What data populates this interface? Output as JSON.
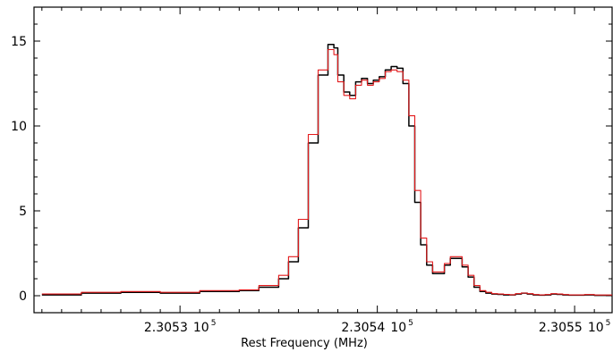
{
  "chart_data": {
    "type": "line",
    "title": "",
    "xlabel": "Rest Frequency (MHz)",
    "ylabel": "",
    "x_unit": "MHz",
    "xlim": [
      230522.6,
      230551.9
    ],
    "ylim": [
      -1.0,
      17.0
    ],
    "grid": false,
    "legend": "none",
    "x_ticks": [
      {
        "value": 230530,
        "mantissa": "2.3053",
        "base": "10",
        "exponent": "5"
      },
      {
        "value": 230540,
        "mantissa": "2.3054",
        "base": "10",
        "exponent": "5"
      },
      {
        "value": 230550,
        "mantissa": "2.3055",
        "base": "10",
        "exponent": "5"
      }
    ],
    "y_ticks": [
      0,
      5,
      10,
      15
    ],
    "series": [
      {
        "color": "#000000",
        "style": "step",
        "x": [
          230523.0,
          230525.0,
          230527.0,
          230529.0,
          230531.0,
          230533.0,
          230534.0,
          230535.0,
          230535.5,
          230536.0,
          230536.5,
          230537.0,
          230537.5,
          230537.8,
          230538.0,
          230538.3,
          230538.6,
          230538.9,
          230539.2,
          230539.5,
          230539.8,
          230540.1,
          230540.4,
          230540.7,
          230541.0,
          230541.3,
          230541.6,
          230541.9,
          230542.2,
          230542.5,
          230542.8,
          230543.1,
          230543.4,
          230543.7,
          230544.0,
          230544.3,
          230544.6,
          230544.9,
          230545.2,
          230545.5,
          230545.8,
          230546.1,
          230546.4,
          230546.7,
          230547.0,
          230547.3,
          230547.6,
          230547.9,
          230548.2,
          230548.5,
          230548.8,
          230549.1,
          230549.4,
          230549.7,
          230550.0,
          230550.5,
          230551.0,
          230551.9
        ],
        "y": [
          0.05,
          0.15,
          0.2,
          0.15,
          0.25,
          0.3,
          0.5,
          1.0,
          2.0,
          4.0,
          9.0,
          13.0,
          14.8,
          14.6,
          13.0,
          12.0,
          11.8,
          12.6,
          12.8,
          12.5,
          12.7,
          12.9,
          13.3,
          13.5,
          13.4,
          12.5,
          10.0,
          5.5,
          3.0,
          1.8,
          1.3,
          1.3,
          1.8,
          2.2,
          2.2,
          1.7,
          1.1,
          0.5,
          0.25,
          0.15,
          0.1,
          0.08,
          0.05,
          0.05,
          0.1,
          0.15,
          0.1,
          0.05,
          0.03,
          0.05,
          0.1,
          0.08,
          0.05,
          0.03,
          0.03,
          0.05,
          0.02,
          0.02
        ]
      },
      {
        "color": "#e31a1c",
        "style": "step",
        "x": [
          230523.0,
          230525.0,
          230527.0,
          230529.0,
          230531.0,
          230533.0,
          230534.0,
          230535.0,
          230535.5,
          230536.0,
          230536.5,
          230537.0,
          230537.5,
          230537.8,
          230538.0,
          230538.3,
          230538.6,
          230538.9,
          230539.2,
          230539.5,
          230539.8,
          230540.1,
          230540.4,
          230540.7,
          230541.0,
          230541.3,
          230541.6,
          230541.9,
          230542.2,
          230542.5,
          230542.8,
          230543.1,
          230543.4,
          230543.7,
          230544.0,
          230544.3,
          230544.6,
          230544.9,
          230545.2,
          230545.5,
          230545.8,
          230546.1,
          230546.4,
          230546.7,
          230547.0,
          230547.3,
          230547.6,
          230547.9,
          230548.2,
          230548.5,
          230548.8,
          230549.1,
          230549.4,
          230549.7,
          230550.0,
          230550.5,
          230551.0,
          230551.9
        ],
        "y": [
          0.1,
          0.2,
          0.25,
          0.2,
          0.3,
          0.35,
          0.6,
          1.2,
          2.3,
          4.5,
          9.5,
          13.3,
          14.5,
          14.2,
          12.6,
          11.8,
          11.6,
          12.4,
          12.7,
          12.4,
          12.6,
          12.8,
          13.2,
          13.3,
          13.2,
          12.7,
          10.6,
          6.2,
          3.4,
          2.0,
          1.4,
          1.4,
          1.9,
          2.3,
          2.3,
          1.8,
          1.2,
          0.6,
          0.3,
          0.2,
          0.12,
          0.1,
          0.08,
          0.06,
          0.12,
          0.16,
          0.12,
          0.07,
          0.05,
          0.07,
          0.12,
          0.1,
          0.07,
          0.05,
          0.05,
          0.07,
          0.04,
          0.04
        ]
      }
    ]
  }
}
